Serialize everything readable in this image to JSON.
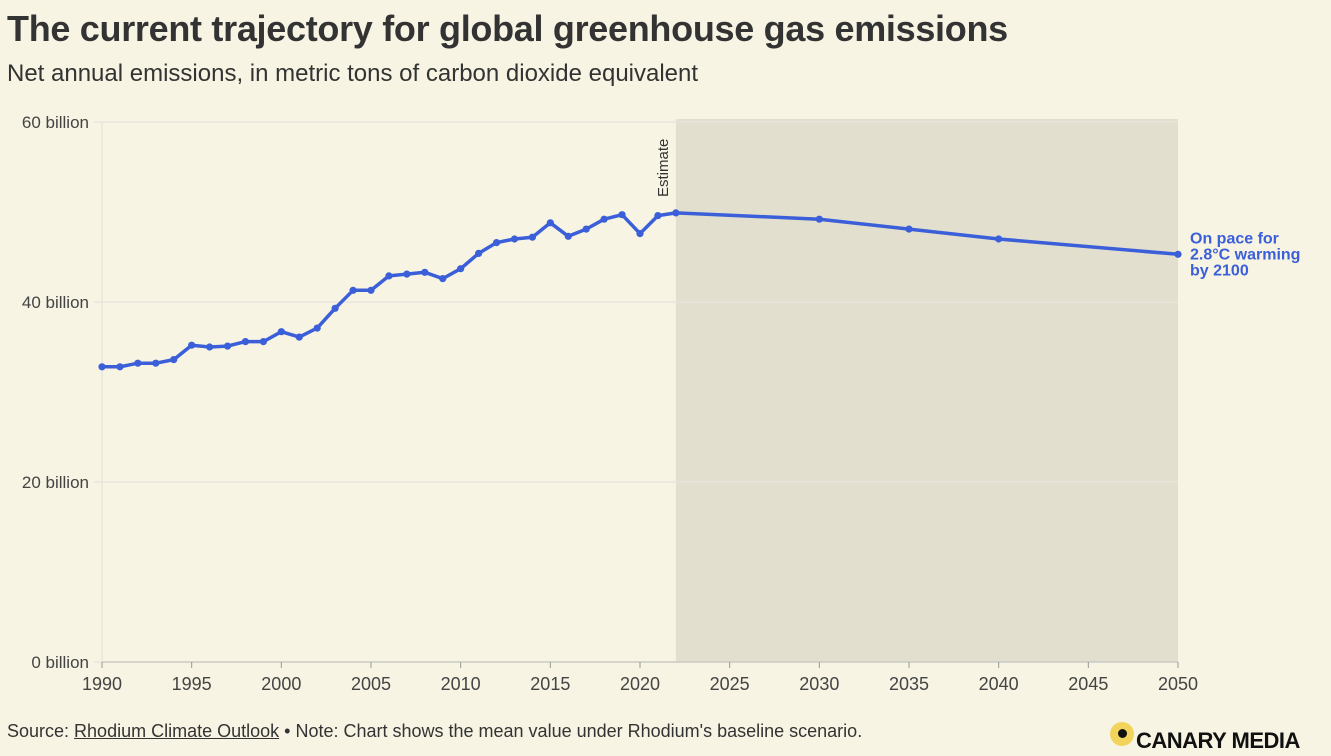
{
  "chart_data": {
    "type": "line",
    "title": "The current trajectory for global greenhouse gas emissions",
    "subtitle": "Net annual emissions, in metric tons of carbon dioxide equivalent",
    "xlabel": "",
    "ylabel": "",
    "xlim": [
      1990,
      2050
    ],
    "ylim": [
      0,
      60
    ],
    "x_ticks": [
      "1990",
      "1995",
      "2000",
      "2005",
      "2010",
      "2015",
      "2020",
      "2025",
      "2030",
      "2035",
      "2040",
      "2045",
      "2050"
    ],
    "y_ticks": [
      {
        "value": 0,
        "label": "0 billion"
      },
      {
        "value": 20,
        "label": "20 billion"
      },
      {
        "value": 40,
        "label": "40 billion"
      },
      {
        "value": 60,
        "label": "60 billion"
      }
    ],
    "grid": true,
    "series": [
      {
        "name": "Net annual emissions (billion t CO2e)",
        "color": "#3b5fd9",
        "points": [
          [
            1990,
            32.8
          ],
          [
            1991,
            32.8
          ],
          [
            1992,
            33.2
          ],
          [
            1993,
            33.2
          ],
          [
            1994,
            33.6
          ],
          [
            1995,
            35.2
          ],
          [
            1996,
            35.0
          ],
          [
            1997,
            35.1
          ],
          [
            1998,
            35.6
          ],
          [
            1999,
            35.6
          ],
          [
            2000,
            36.7
          ],
          [
            2001,
            36.1
          ],
          [
            2002,
            37.1
          ],
          [
            2003,
            39.3
          ],
          [
            2004,
            41.3
          ],
          [
            2005,
            41.3
          ],
          [
            2006,
            42.9
          ],
          [
            2007,
            43.1
          ],
          [
            2008,
            43.3
          ],
          [
            2009,
            42.6
          ],
          [
            2010,
            43.7
          ],
          [
            2011,
            45.4
          ],
          [
            2012,
            46.6
          ],
          [
            2013,
            47.0
          ],
          [
            2014,
            47.2
          ],
          [
            2015,
            48.8
          ],
          [
            2016,
            47.3
          ],
          [
            2017,
            48.1
          ],
          [
            2018,
            49.2
          ],
          [
            2019,
            49.7
          ],
          [
            2020,
            47.6
          ],
          [
            2021,
            49.6
          ],
          [
            2022,
            49.9
          ],
          [
            2030,
            49.2
          ],
          [
            2035,
            48.1
          ],
          [
            2040,
            47.0
          ],
          [
            2050,
            45.3
          ]
        ]
      }
    ],
    "estimate_region": {
      "from": 2022,
      "to": 2050,
      "label": "Estimate",
      "color": "#e2dfcf"
    },
    "end_annotation": [
      "On pace for",
      "2.8°C warming",
      "by 2100"
    ]
  },
  "footer": {
    "source_prefix": "Source: ",
    "source_link": "Rhodium Climate Outlook",
    "note": " • Note: Chart shows the mean value under Rhodium's baseline scenario."
  },
  "logo": {
    "text": "CANARY MEDIA"
  }
}
